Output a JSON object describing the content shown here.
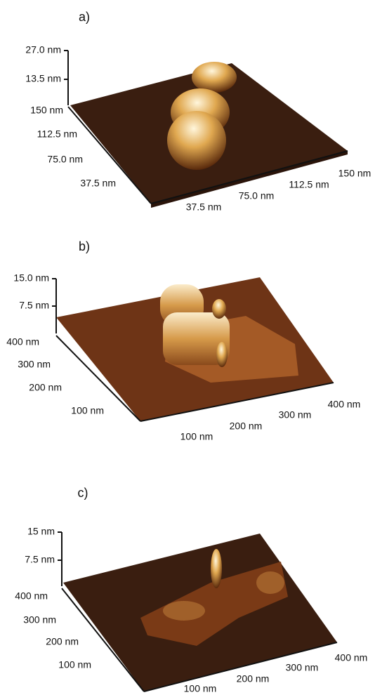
{
  "panels": [
    {
      "label": "a)",
      "z_ticks": [
        "27.0 nm",
        "13.5 nm"
      ],
      "y_ticks": [
        "150 nm",
        "112.5 nm",
        "75.0 nm",
        "37.5 nm"
      ],
      "x_ticks": [
        "37.5 nm",
        "75.0 nm",
        "112.5 nm",
        "150  nm"
      ]
    },
    {
      "label": "b)",
      "z_ticks": [
        "15.0 nm",
        "7.5 nm"
      ],
      "y_ticks": [
        "400 nm",
        "300 nm",
        "200 nm",
        "100 nm"
      ],
      "x_ticks": [
        "100 nm",
        "200 nm",
        "300 nm",
        "400 nm"
      ]
    },
    {
      "label": "c)",
      "z_ticks": [
        "15 nm",
        "7.5 nm"
      ],
      "y_ticks": [
        "400 nm",
        "300 nm",
        "200 nm",
        "100 nm"
      ],
      "x_ticks": [
        "100 nm",
        "200 nm",
        "300 nm",
        "400  nm"
      ]
    }
  ]
}
